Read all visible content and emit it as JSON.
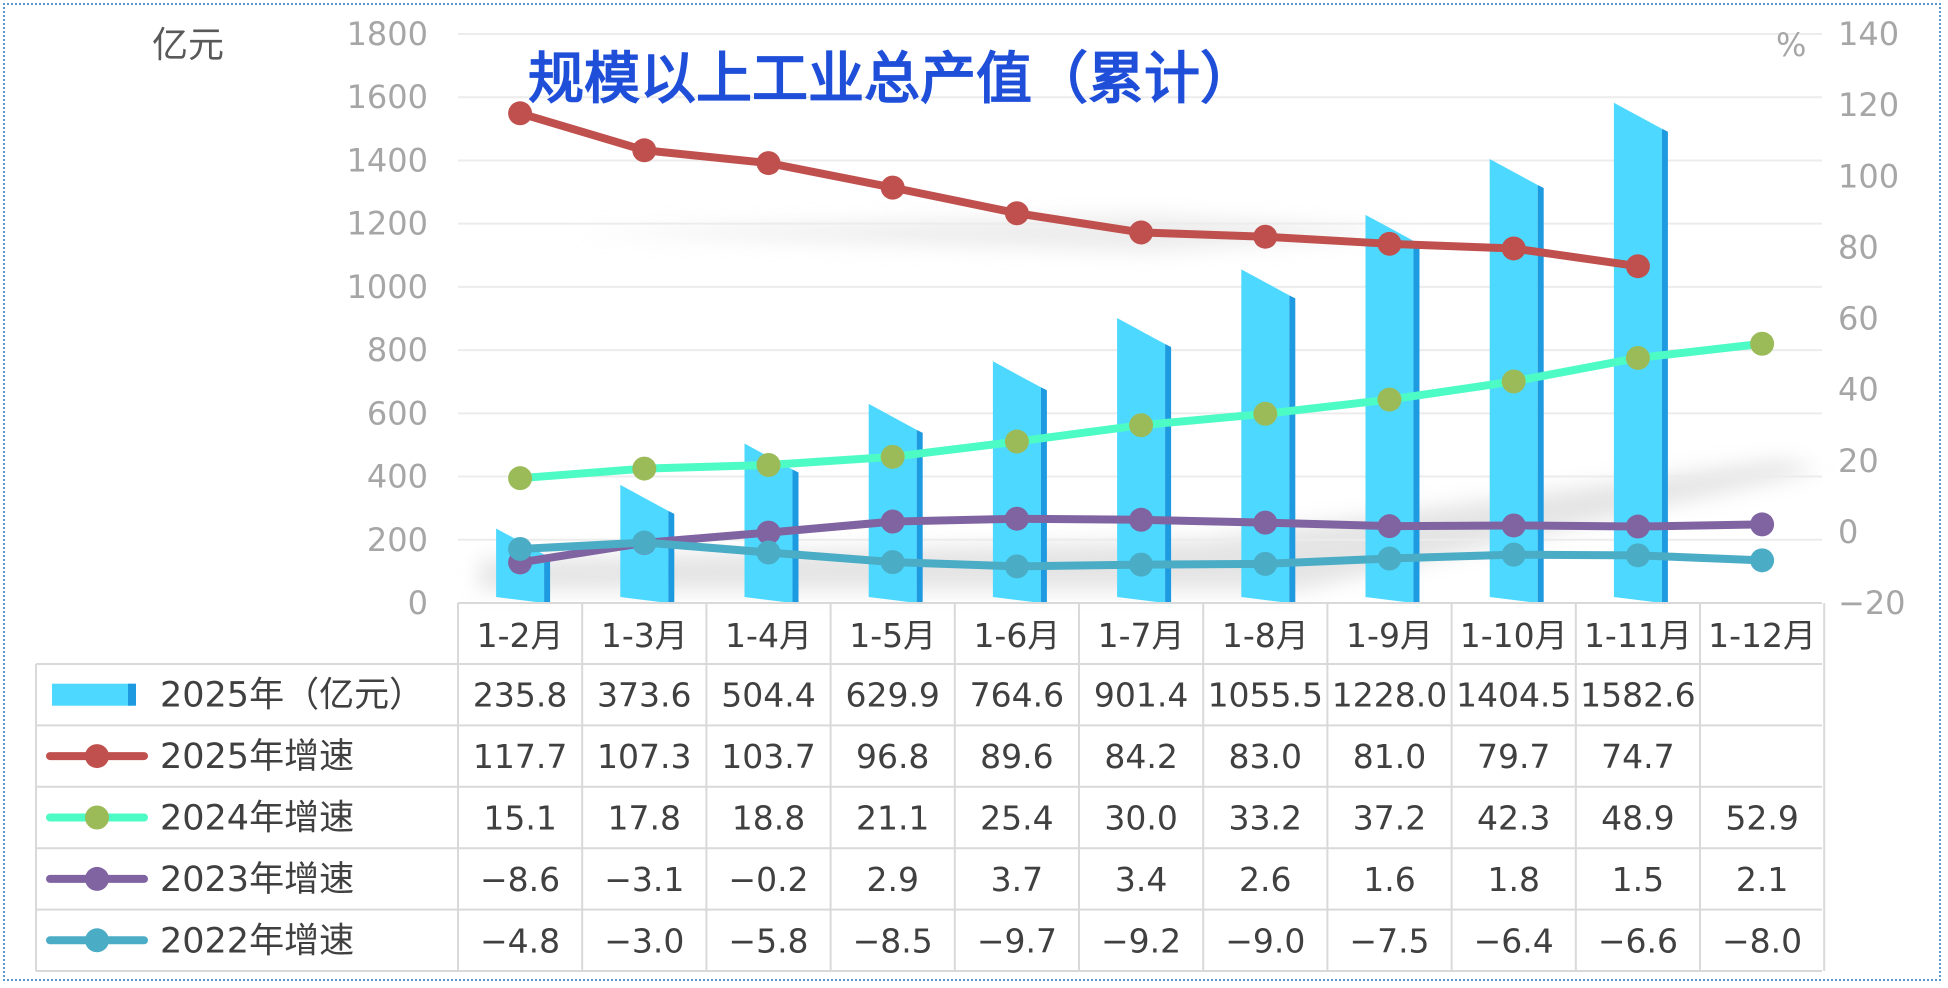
{
  "chart_data": {
    "type": "bar+line",
    "title": "规模以上工业总产值（累计）",
    "left_unit": "亿元",
    "right_unit": "%",
    "left_axis": {
      "min": 0,
      "max": 1800,
      "step": 200,
      "ticks": [
        "0",
        "200",
        "400",
        "600",
        "800",
        "1000",
        "1200",
        "1400",
        "1600",
        "1800"
      ]
    },
    "right_axis": {
      "min": -20,
      "max": 140,
      "step": 20,
      "ticks": [
        "−20",
        "0",
        "20",
        "40",
        "60",
        "80",
        "100",
        "120",
        "140"
      ]
    },
    "categories": [
      "1-2月",
      "1-3月",
      "1-4月",
      "1-5月",
      "1-6月",
      "1-7月",
      "1-8月",
      "1-9月",
      "1-10月",
      "1-11月",
      "1-12月"
    ],
    "series": [
      {
        "name": "2025年（亿元）",
        "kind": "bar",
        "axis": "left",
        "color": "#4dd9ff",
        "values": [
          235.8,
          373.6,
          504.4,
          629.9,
          764.6,
          901.4,
          1055.5,
          1228.0,
          1404.5,
          1582.6,
          null
        ],
        "labels": [
          "235.8",
          "373.6",
          "504.4",
          "629.9",
          "764.6",
          "901.4",
          "1055.5",
          "1228.0",
          "1404.5",
          "1582.6",
          ""
        ]
      },
      {
        "name": "2025年增速",
        "kind": "line",
        "axis": "right",
        "line_color": "#c0504d",
        "marker_color": "#c0504d",
        "values": [
          117.7,
          107.3,
          103.7,
          96.8,
          89.6,
          84.2,
          83.0,
          81.0,
          79.7,
          74.7,
          null
        ],
        "labels": [
          "117.7",
          "107.3",
          "103.7",
          "96.8",
          "89.6",
          "84.2",
          "83.0",
          "81.0",
          "79.7",
          "74.7",
          ""
        ]
      },
      {
        "name": "2024年增速",
        "kind": "line",
        "axis": "right",
        "line_color": "#4dfbc5",
        "marker_color": "#9bbb59",
        "values": [
          15.1,
          17.8,
          18.8,
          21.1,
          25.4,
          30.0,
          33.2,
          37.2,
          42.3,
          48.9,
          52.9
        ],
        "labels": [
          "15.1",
          "17.8",
          "18.8",
          "21.1",
          "25.4",
          "30.0",
          "33.2",
          "37.2",
          "42.3",
          "48.9",
          "52.9"
        ]
      },
      {
        "name": "2023年增速",
        "kind": "line",
        "axis": "right",
        "line_color": "#8064a2",
        "marker_color": "#8064a2",
        "values": [
          -8.6,
          -3.1,
          -0.2,
          2.9,
          3.7,
          3.4,
          2.6,
          1.6,
          1.8,
          1.5,
          2.1
        ],
        "labels": [
          "−8.6",
          "−3.1",
          "−0.2",
          "2.9",
          "3.7",
          "3.4",
          "2.6",
          "1.6",
          "1.8",
          "1.5",
          "2.1"
        ]
      },
      {
        "name": "2022年增速",
        "kind": "line",
        "axis": "right",
        "line_color": "#4bacc6",
        "marker_color": "#4bacc6",
        "values": [
          -4.8,
          -3.0,
          -5.8,
          -8.5,
          -9.7,
          -9.2,
          -9.0,
          -7.5,
          -6.4,
          -6.6,
          -8.0
        ],
        "labels": [
          "−4.8",
          "−3.0",
          "−5.8",
          "−8.5",
          "−9.7",
          "−9.2",
          "−9.0",
          "−7.5",
          "−6.4",
          "−6.6",
          "−8.0"
        ]
      }
    ],
    "grid": true,
    "legend_placement": "data-table-left"
  }
}
